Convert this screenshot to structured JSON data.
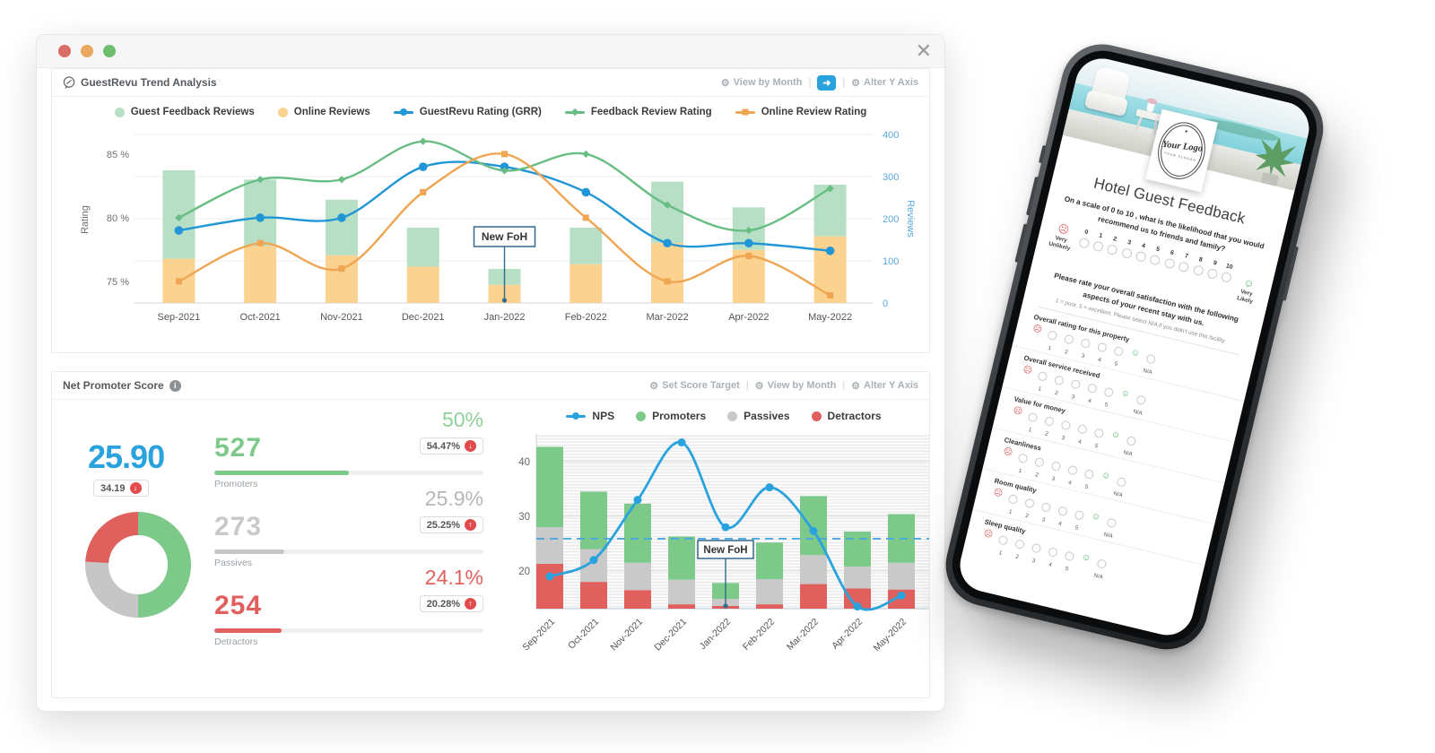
{
  "icons": {
    "close": "✕",
    "gear": "⚙",
    "arrow": "➜",
    "down": "↓",
    "up": "↑",
    "info": "i",
    "sad": "☹",
    "happy": "☺",
    "star": "✦",
    "separator": "|"
  },
  "trend_panel": {
    "title": "GuestRevu Trend Analysis",
    "control_view": "View by Month",
    "control_alter": "Alter Y Axis"
  },
  "nps_panel": {
    "title": "Net Promoter Score",
    "control_target": "Set Score Target",
    "control_view": "View by Month",
    "control_alter": "Alter Y Axis",
    "score": {
      "value": "25.90",
      "previous": "34.19",
      "trend": "down"
    },
    "stats": [
      {
        "count": "527",
        "label": "Promoters",
        "pct": "50%",
        "badge_pct": "54.47%",
        "trend": "down",
        "color": "#7cc98a",
        "pct_color": "#8ed19b",
        "count_color": "#7cc98a",
        "bar_fill": 50
      },
      {
        "count": "273",
        "label": "Passives",
        "pct": "25.9%",
        "badge_pct": "25.25%",
        "trend": "up",
        "color": "#c6c6c6",
        "pct_color": "#b5b8ba",
        "count_color": "#c9c9c9",
        "bar_fill": 26
      },
      {
        "count": "254",
        "label": "Detractors",
        "pct": "24.1%",
        "badge_pct": "20.28%",
        "trend": "up",
        "color": "#e0605e",
        "pct_color": "#e0605e",
        "count_color": "#e0605e",
        "bar_fill": 25
      }
    ]
  },
  "chart_data": [
    {
      "id": "trend",
      "type": "bar",
      "title": "GuestRevu Trend Analysis",
      "categories": [
        "Sep-2021",
        "Oct-2021",
        "Nov-2021",
        "Dec-2021",
        "Jan-2022",
        "Feb-2022",
        "Mar-2022",
        "Apr-2022",
        "May-2022"
      ],
      "bar_series": [
        {
          "name": "Online Reviews",
          "color": "#fbd28f",
          "axis": "right",
          "values": [
            105,
            135,
            113,
            86,
            43,
            92,
            142,
            126,
            158
          ]
        },
        {
          "name": "Guest Feedback Reviews",
          "color": "#b7dfc5",
          "axis": "right",
          "values": [
            210,
            158,
            132,
            93,
            38,
            87,
            146,
            101,
            123
          ]
        }
      ],
      "line_series": [
        {
          "name": "GuestRevu Rating (GRR)",
          "color": "#2196d6",
          "marker": "circle",
          "axis": "left",
          "values": [
            79,
            80,
            80,
            84,
            84,
            82,
            78,
            78,
            77.4
          ]
        },
        {
          "name": "Feedback Review Rating",
          "color": "#68bd83",
          "marker": "diamond",
          "axis": "left",
          "values": [
            80,
            83,
            83,
            86,
            83.7,
            85,
            81,
            79,
            82.3
          ]
        },
        {
          "name": "Online Review Rating",
          "color": "#efa551",
          "marker": "square",
          "axis": "left",
          "values": [
            75,
            78,
            76,
            82,
            85,
            80,
            75,
            77,
            73.9
          ]
        }
      ],
      "legend": [
        {
          "label": "Guest Feedback Reviews",
          "color": "#b7dfc5",
          "type": "dot"
        },
        {
          "label": "Online Reviews",
          "color": "#fbd28f",
          "type": "dot"
        },
        {
          "label": "GuestRevu Rating (GRR)",
          "color": "#2196d6",
          "type": "line",
          "marker": "circle"
        },
        {
          "label": "Feedback Review Rating",
          "color": "#68bd83",
          "type": "line",
          "marker": "diamond"
        },
        {
          "label": "Online Review Rating",
          "color": "#efa551",
          "type": "line",
          "marker": "square"
        }
      ],
      "y_left": {
        "label": "Rating",
        "ticks": [
          85,
          80,
          75
        ],
        "tick_suffix": " %",
        "range": [
          73.3,
          86.9
        ]
      },
      "y_right": {
        "label": "Reviews",
        "ticks": [
          400,
          300,
          200,
          100,
          0
        ],
        "range": [
          0,
          410
        ]
      },
      "grid": true,
      "annotation": {
        "text": "New FoH",
        "category": "Jan-2022",
        "category_index": 4
      }
    },
    {
      "id": "nps",
      "type": "bar",
      "title": "Net Promoter Score",
      "categories": [
        "Sep-2021",
        "Oct-2021",
        "Nov-2021",
        "Dec-2021",
        "Jan-2022",
        "Feb-2022",
        "Mar-2022",
        "Apr-2022",
        "May-2022"
      ],
      "baseline_value": 13.1,
      "stack_series": [
        {
          "name": "Detractors",
          "color": "#e0605e",
          "tops": [
            21.3,
            18,
            16.5,
            13.9,
            13.6,
            13.9,
            17.6,
            16.8,
            16.6
          ]
        },
        {
          "name": "Passives",
          "color": "#c9c9c9",
          "tops": [
            28,
            24,
            21.5,
            18.4,
            14.9,
            18.5,
            22.9,
            20.8,
            21.5
          ]
        },
        {
          "name": "Promoters",
          "color": "#7cc98a",
          "tops": [
            42.7,
            34.5,
            32.3,
            26.3,
            17.8,
            25.2,
            33.7,
            27.2,
            30.4
          ]
        }
      ],
      "line_series": [
        {
          "name": "NPS",
          "color": "#29a3dd",
          "marker": "circle",
          "values": [
            19,
            22,
            33,
            43.5,
            28,
            35.3,
            27.3,
            13.5,
            15.5
          ]
        }
      ],
      "legend": [
        {
          "label": "NPS",
          "color": "#29a3dd",
          "type": "line",
          "marker": "circle"
        },
        {
          "label": "Promoters",
          "color": "#7cc98a",
          "type": "dot"
        },
        {
          "label": "Passives",
          "color": "#c9c9c9",
          "type": "dot"
        },
        {
          "label": "Detractors",
          "color": "#e0605e",
          "type": "dot"
        }
      ],
      "y": {
        "ticks": [
          40,
          30,
          20
        ],
        "range": [
          13.1,
          45
        ]
      },
      "target_line": {
        "value": 25.9,
        "color": "#4aa8de",
        "style": "dashed"
      },
      "annotation": {
        "text": "New FoH",
        "category": "Jan-2022",
        "category_index": 4
      }
    },
    {
      "id": "nps-donut",
      "type": "pie",
      "slices": [
        {
          "label": "Promoters",
          "value": 50,
          "color": "#7cc98a"
        },
        {
          "label": "Passives",
          "value": 25.9,
          "color": "#c6c6c6"
        },
        {
          "label": "Detractors",
          "value": 24.1,
          "color": "#e0605e"
        }
      ],
      "inner_radius_ratio": 0.56
    }
  ],
  "phone": {
    "logo": {
      "name": "Your Logo",
      "slogan": "YOUR SLOGAN"
    },
    "title": "Hotel Guest Feedback",
    "nps_question": "On a scale of 0 to 10 , what is the likelihood that you would recommend us to friends and family?",
    "very_unlikely": "Very Unlikely",
    "very_likely": "Very Likely",
    "scale_numbers": [
      "0",
      "1",
      "2",
      "3",
      "4",
      "5",
      "6",
      "7",
      "8",
      "9",
      "10"
    ],
    "satisfaction_intro": "Please rate your overall satisfaction with the following aspects of your recent stay with us.",
    "satisfaction_note": "1 = poor, 5 = excellent. Please select N/A if you didn't use this facility.",
    "rating_scale": [
      "1",
      "2",
      "3",
      "4",
      "5"
    ],
    "na_label": "N/A",
    "categories": [
      "Overall rating for this property",
      "Overall service received",
      "Value for money",
      "Cleanliness",
      "Room quality",
      "Sleep quality"
    ]
  }
}
